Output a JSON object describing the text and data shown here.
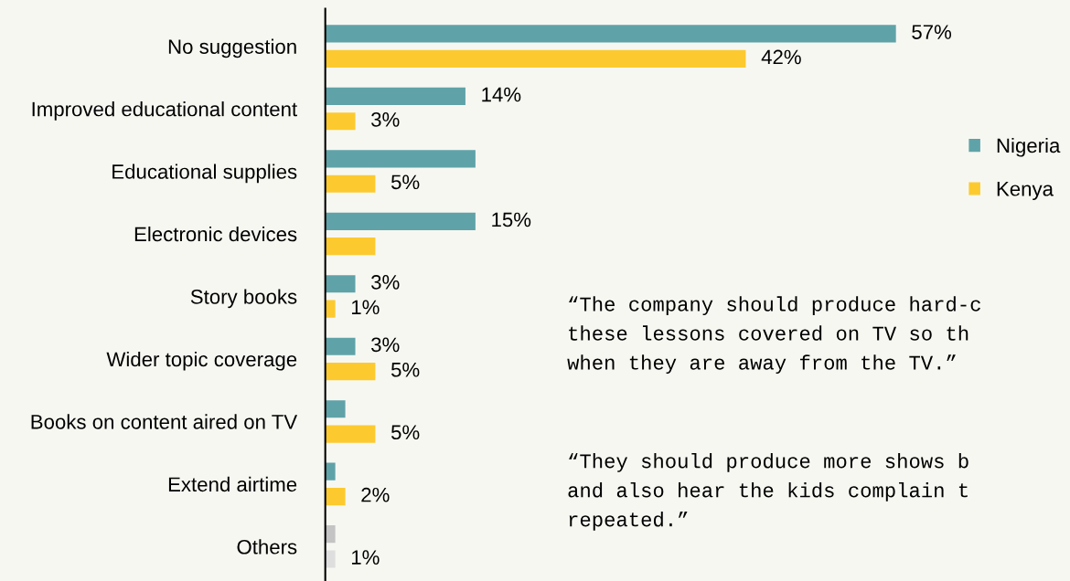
{
  "chart_data": {
    "type": "bar",
    "orientation": "horizontal",
    "categories": [
      "No suggestion",
      "Improved educational content",
      "Educational supplies",
      "Electronic devices",
      "Story books",
      "Wider topic coverage",
      "Books on content aired on TV",
      "Extend airtime",
      "Others"
    ],
    "series": [
      {
        "name": "Nigeria",
        "color": "#5fa3a8",
        "colors": [
          "#5fa3a8",
          "#5fa3a8",
          "#5fa3a8",
          "#5fa3a8",
          "#5fa3a8",
          "#5fa3a8",
          "#5fa3a8",
          "#5fa3a8",
          "#c4c4c4"
        ],
        "values": [
          57,
          14,
          15,
          15,
          3,
          3,
          2,
          1,
          1
        ],
        "value_labels": [
          "57%",
          "14%",
          null,
          "15%",
          "3%",
          "3%",
          null,
          null,
          null
        ]
      },
      {
        "name": "Kenya",
        "color": "#fcca2e",
        "colors": [
          "#fcca2e",
          "#fcca2e",
          "#fcca2e",
          "#fcca2e",
          "#fcca2e",
          "#fcca2e",
          "#fcca2e",
          "#fcca2e",
          "#dedede"
        ],
        "values": [
          42,
          3,
          5,
          5,
          1,
          5,
          5,
          2,
          1
        ],
        "value_labels": [
          "42%",
          "3%",
          "5%",
          null,
          "1%",
          "5%",
          "5%",
          "2%",
          "1%"
        ]
      }
    ],
    "legend": "right",
    "grid": false,
    "annotations": [
      "“The company should produce hard-c\nthese lessons covered on TV so th\nwhen they are away from the TV.”",
      "“They should produce more shows b\nand also hear the kids complain t\nrepeated.”"
    ]
  }
}
